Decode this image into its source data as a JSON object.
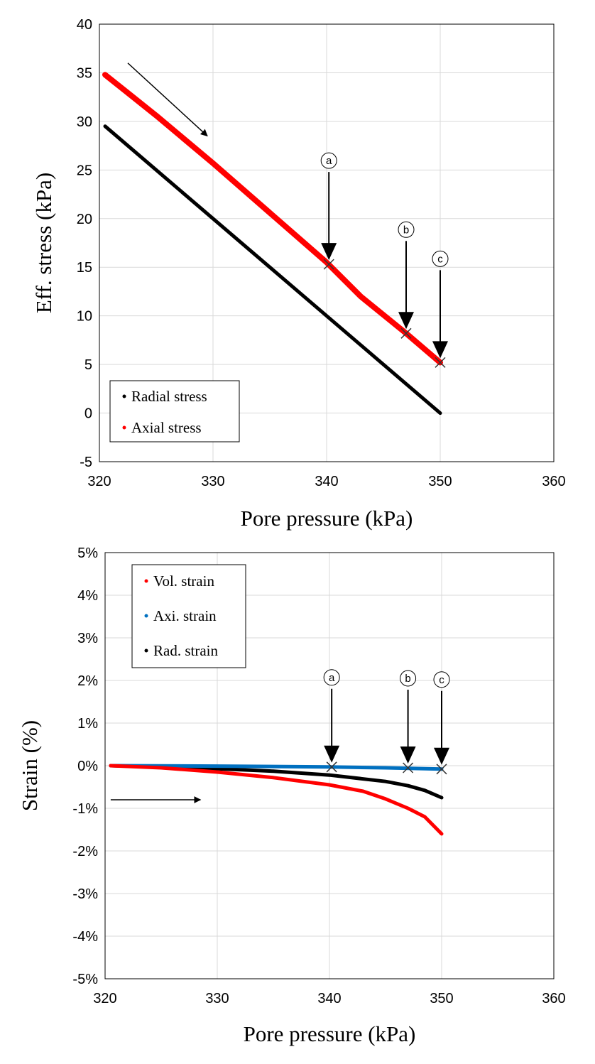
{
  "chart_data": [
    {
      "type": "line",
      "xlabel": "Pore pressure  (kPa)",
      "ylabel": "Eff. stress (kPa)",
      "xlim": [
        320,
        360
      ],
      "ylim": [
        -5,
        40
      ],
      "xticks": [
        "320",
        "330",
        "340",
        "350",
        "360"
      ],
      "yticks": [
        "-5",
        "0",
        "5",
        "10",
        "15",
        "20",
        "25",
        "30",
        "35",
        "40"
      ],
      "grid": true,
      "legend": "bottom-left",
      "series": [
        {
          "name": "Radial stress",
          "color": "#000000",
          "x": [
            320.5,
            350
          ],
          "y": [
            29.5,
            0
          ]
        },
        {
          "name": "Axial stress",
          "color": "#ff0000",
          "x": [
            320.5,
            325,
            330,
            335,
            340,
            343,
            345,
            347,
            350
          ],
          "y": [
            34.8,
            30.6,
            25.7,
            20.6,
            15.5,
            12.0,
            10.1,
            8.2,
            5.2
          ]
        }
      ],
      "markers": [
        {
          "label": "ⓐ",
          "x": 340.2,
          "y": 15.3
        },
        {
          "label": "ⓑ",
          "x": 347.0,
          "y": 8.2
        },
        {
          "label": "ⓒ",
          "x": 350.0,
          "y": 5.2
        }
      ],
      "direction_arrow": {
        "from": [
          322.5,
          36.0
        ],
        "to": [
          329.5,
          28.5
        ]
      }
    },
    {
      "type": "line",
      "xlabel": "Pore pressure  (kPa)",
      "ylabel": "Strain (%)",
      "xlim": [
        320,
        360
      ],
      "ylim": [
        -5,
        5
      ],
      "xticks": [
        "320",
        "330",
        "340",
        "350",
        "360"
      ],
      "yticks": [
        "-5%",
        "-4%",
        "-3%",
        "-2%",
        "-1%",
        "0%",
        "1%",
        "2%",
        "3%",
        "4%",
        "5%"
      ],
      "grid": true,
      "legend": "top-left",
      "series": [
        {
          "name": "Vol. strain",
          "color": "#ff0000",
          "x": [
            320.5,
            325,
            330,
            335,
            340,
            343,
            345,
            347,
            348.5,
            350
          ],
          "y": [
            0,
            -0.05,
            -0.15,
            -0.28,
            -0.45,
            -0.6,
            -0.78,
            -1.0,
            -1.2,
            -1.6
          ]
        },
        {
          "name": "Axi. strain",
          "color": "#0070c0",
          "x": [
            320.5,
            330,
            340,
            345,
            350
          ],
          "y": [
            0,
            -0.01,
            -0.03,
            -0.05,
            -0.08
          ]
        },
        {
          "name": "Rad. strain",
          "color": "#000000",
          "x": [
            320.5,
            325,
            330,
            335,
            340,
            345,
            347,
            348.5,
            350
          ],
          "y": [
            0,
            -0.03,
            -0.07,
            -0.13,
            -0.22,
            -0.37,
            -0.47,
            -0.58,
            -0.75
          ]
        }
      ],
      "markers": [
        {
          "label": "ⓐ",
          "x": 340.2,
          "y": -0.03
        },
        {
          "label": "ⓑ",
          "x": 347.0,
          "y": -0.05
        },
        {
          "label": "ⓒ",
          "x": 350.0,
          "y": -0.08
        }
      ],
      "direction_arrow": {
        "from": [
          320.5,
          -0.8
        ],
        "to": [
          328.5,
          -0.8
        ]
      }
    }
  ]
}
